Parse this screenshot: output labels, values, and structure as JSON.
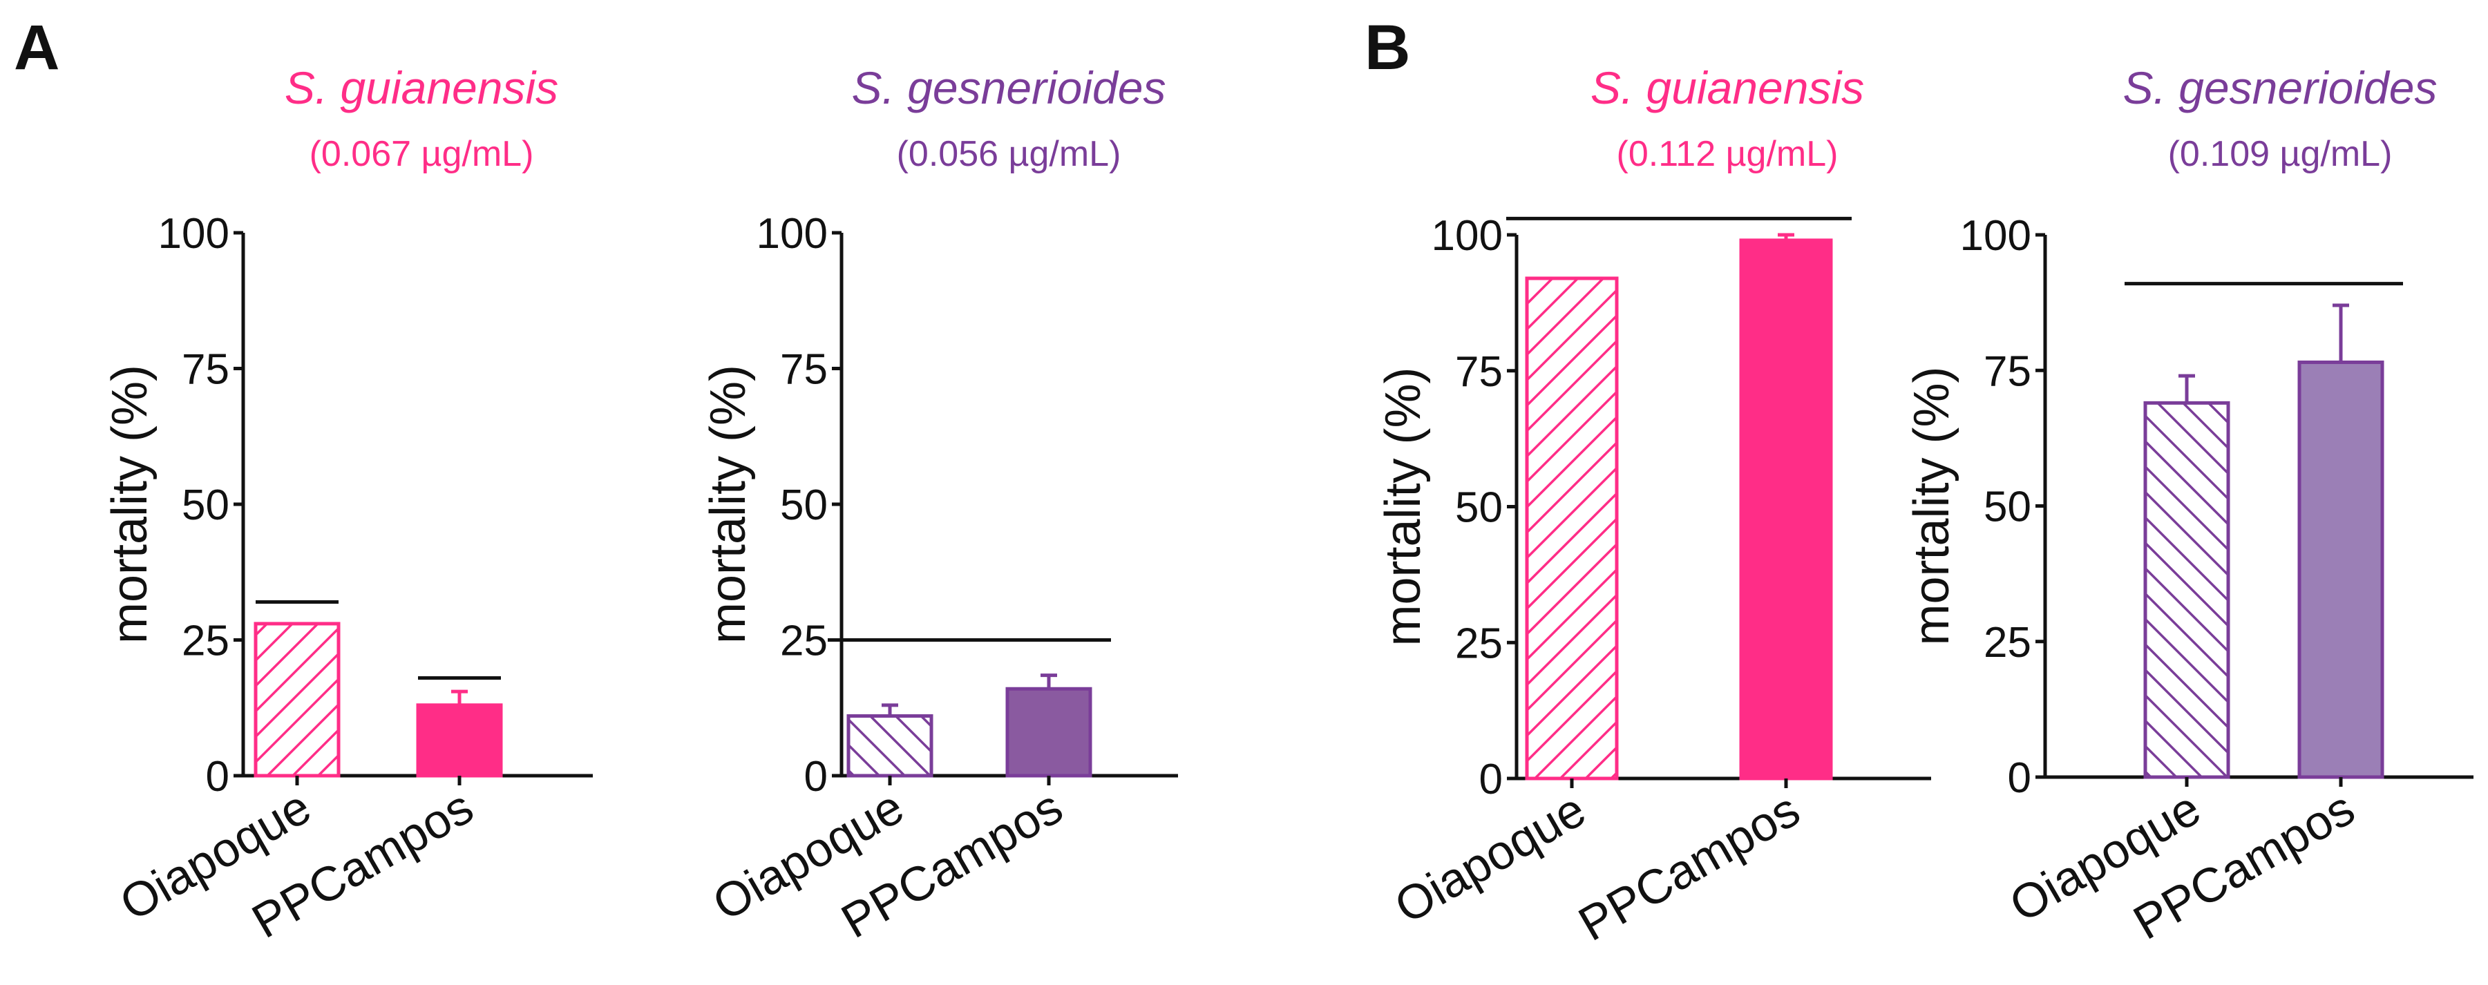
{
  "colors": {
    "pink": "#ff2d87",
    "purple": "#7a3d99",
    "purple_fill": "#8a5aa0",
    "purple_light_fill": "#9b7fb6",
    "axis": "#111111"
  },
  "panels": [
    {
      "letter": "A"
    },
    {
      "letter": "B"
    }
  ],
  "chart_data": [
    {
      "type": "bar",
      "panel": "A",
      "title": "S. guianensis",
      "subtitle": "(0.067 µg/mL)",
      "ylabel": "mortality (%)",
      "ylim": [
        0,
        100
      ],
      "yticks": [
        "0",
        "25",
        "50",
        "75",
        "100"
      ],
      "categories": [
        "Oiapoque",
        "PPCampos"
      ],
      "values": [
        28,
        13
      ],
      "errors": [
        0,
        2.5
      ],
      "styles": [
        "hatched",
        "solid"
      ],
      "color": "pink",
      "fill": "pink",
      "sig_lines": [
        {
          "from": 0,
          "to": 0,
          "value": 32
        },
        {
          "from": 1,
          "to": 1,
          "value": 18
        }
      ]
    },
    {
      "type": "bar",
      "panel": "A",
      "title": "S. gesnerioides",
      "subtitle": "(0.056 µg/mL)",
      "ylabel": "mortality (%)",
      "ylim": [
        0,
        100
      ],
      "yticks": [
        "0",
        "25",
        "50",
        "75",
        "100"
      ],
      "categories": [
        "Oiapoque",
        "PPCampos"
      ],
      "values": [
        11,
        16
      ],
      "errors": [
        2,
        2.5
      ],
      "styles": [
        "hatched",
        "solid"
      ],
      "color": "purple",
      "fill": "purple_fill",
      "sig_lines": [
        {
          "from": 0,
          "to": 1,
          "value": 25
        }
      ]
    },
    {
      "type": "bar",
      "panel": "B",
      "title": "S. guianensis",
      "subtitle": "(0.112 µg/mL)",
      "ylabel": "mortality (%)",
      "ylim": [
        0,
        100
      ],
      "yticks": [
        "0",
        "25",
        "50",
        "75",
        "100"
      ],
      "categories": [
        "Oiapoque",
        "PPCampos"
      ],
      "values": [
        92,
        99
      ],
      "errors": [
        0,
        1
      ],
      "styles": [
        "hatched",
        "solid"
      ],
      "color": "pink",
      "fill": "pink",
      "sig_lines": [
        {
          "from": 0,
          "to": 1,
          "value": 103
        }
      ]
    },
    {
      "type": "bar",
      "panel": "B",
      "title": "S. gesnerioides",
      "subtitle": "(0.109 µg/mL)",
      "ylabel": "mortality (%)",
      "ylim": [
        0,
        100
      ],
      "yticks": [
        "0",
        "25",
        "50",
        "75",
        "100"
      ],
      "categories": [
        "Oiapoque",
        "PPCampos"
      ],
      "values": [
        69,
        76.5
      ],
      "errors": [
        5,
        10.5
      ],
      "styles": [
        "hatched",
        "solid"
      ],
      "color": "purple",
      "fill": "purple_light_fill",
      "sig_lines": [
        {
          "from": 0,
          "to": 1,
          "value": 91
        }
      ]
    }
  ]
}
